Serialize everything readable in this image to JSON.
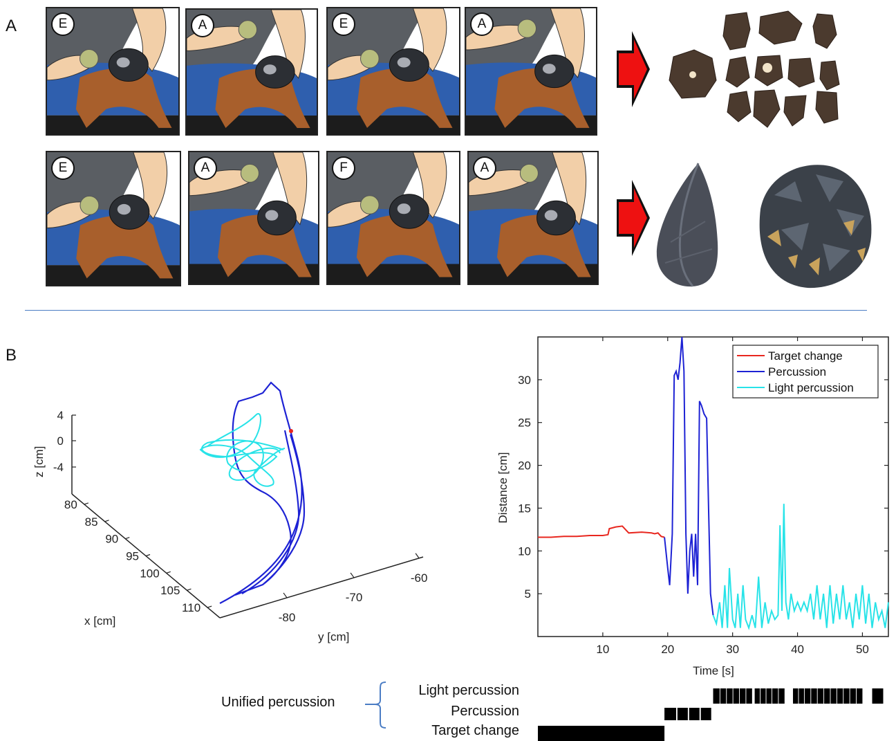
{
  "panels": {
    "a": "A",
    "b": "B"
  },
  "frames_top": [
    "E",
    "A",
    "E",
    "A"
  ],
  "frames_bottom": [
    "E",
    "A",
    "F",
    "A"
  ],
  "icons": {
    "arrow": "red-arrow-icon"
  },
  "colors": {
    "target_change": "#e8271f",
    "percussion": "#1d22d4",
    "light_percussion": "#28e3e8",
    "separator": "#4a7cc4",
    "shirt": "#5a5e63",
    "jeans": "#2f5fae",
    "leather": "#a85f2c",
    "skin": "#f2cfa8",
    "hammerstone": "#b8bd7e"
  },
  "trajectory": {
    "x_label": "x [cm]",
    "y_label": "y [cm]",
    "z_label": "z [cm]",
    "x_ticks": [
      "80",
      "85",
      "90",
      "95",
      "100",
      "105",
      "110"
    ],
    "y_ticks": [
      "-80",
      "-70",
      "-60"
    ],
    "z_ticks": [
      "4",
      "0",
      "-4"
    ]
  },
  "chart_data": {
    "type": "line",
    "xlabel": "Time [s]",
    "ylabel": "Distance [cm]",
    "xlim": [
      0,
      54
    ],
    "ylim": [
      0,
      35
    ],
    "x_ticks": [
      10,
      20,
      30,
      40,
      50
    ],
    "y_ticks": [
      5,
      10,
      15,
      20,
      25,
      30
    ],
    "legend_position": "top-right",
    "series": [
      {
        "name": "Target change",
        "color": "#e8271f",
        "points": [
          [
            0,
            11.6
          ],
          [
            2,
            11.6
          ],
          [
            4,
            11.7
          ],
          [
            6,
            11.7
          ],
          [
            8,
            11.8
          ],
          [
            10,
            11.8
          ],
          [
            10.8,
            11.9
          ],
          [
            11,
            12.6
          ],
          [
            12,
            12.8
          ],
          [
            13,
            12.9
          ],
          [
            13.5,
            12.5
          ],
          [
            14,
            12.1
          ],
          [
            16,
            12.2
          ],
          [
            17.5,
            12.1
          ],
          [
            18,
            12.0
          ],
          [
            18.5,
            12.1
          ],
          [
            19,
            11.7
          ],
          [
            19.5,
            11.6
          ]
        ]
      },
      {
        "name": "Percussion",
        "color": "#1d22d4",
        "points": [
          [
            19.5,
            11.6
          ],
          [
            20,
            8
          ],
          [
            20.3,
            6
          ],
          [
            20.7,
            12
          ],
          [
            21,
            30.5
          ],
          [
            21.3,
            31
          ],
          [
            21.6,
            30
          ],
          [
            21.9,
            32
          ],
          [
            22.2,
            35
          ],
          [
            22.5,
            31
          ],
          [
            22.8,
            12
          ],
          [
            23.1,
            5
          ],
          [
            23.4,
            10
          ],
          [
            23.7,
            12
          ],
          [
            24,
            7
          ],
          [
            24.3,
            12
          ],
          [
            24.6,
            6
          ],
          [
            24.9,
            27.5
          ],
          [
            25.2,
            27
          ],
          [
            25.6,
            26
          ],
          [
            26,
            25.5
          ],
          [
            26.3,
            15
          ],
          [
            26.6,
            5
          ],
          [
            27,
            2.5
          ]
        ]
      },
      {
        "name": "Light percussion",
        "color": "#28e3e8",
        "points": [
          [
            27,
            2.5
          ],
          [
            27.5,
            1.5
          ],
          [
            28,
            4
          ],
          [
            28.4,
            1
          ],
          [
            28.8,
            6
          ],
          [
            29.2,
            1
          ],
          [
            29.5,
            8
          ],
          [
            30,
            2
          ],
          [
            30.4,
            1
          ],
          [
            30.8,
            5
          ],
          [
            31.2,
            1
          ],
          [
            31.6,
            6
          ],
          [
            32,
            2
          ],
          [
            32.5,
            1
          ],
          [
            33,
            2.5
          ],
          [
            33.5,
            1
          ],
          [
            34,
            7
          ],
          [
            34.5,
            1
          ],
          [
            35,
            4
          ],
          [
            35.5,
            1.5
          ],
          [
            36,
            3
          ],
          [
            36.5,
            2
          ],
          [
            37,
            2.5
          ],
          [
            37.3,
            13
          ],
          [
            37.6,
            3
          ],
          [
            37.9,
            15.5
          ],
          [
            38.2,
            4
          ],
          [
            38.6,
            2
          ],
          [
            39,
            5
          ],
          [
            39.5,
            3
          ],
          [
            40,
            4
          ],
          [
            40.5,
            3
          ],
          [
            41,
            4
          ],
          [
            41.5,
            3
          ],
          [
            42,
            5
          ],
          [
            42.5,
            2
          ],
          [
            43,
            6
          ],
          [
            43.5,
            2
          ],
          [
            44,
            5
          ],
          [
            44.5,
            1
          ],
          [
            45,
            6
          ],
          [
            45.5,
            1.5
          ],
          [
            46,
            5
          ],
          [
            46.5,
            2
          ],
          [
            47,
            6
          ],
          [
            47.5,
            2
          ],
          [
            48,
            4
          ],
          [
            48.5,
            1
          ],
          [
            49,
            5
          ],
          [
            49.5,
            2
          ],
          [
            50,
            6
          ],
          [
            50.5,
            1.5
          ],
          [
            51,
            5
          ],
          [
            51.5,
            1
          ],
          [
            52,
            4
          ],
          [
            52.5,
            2
          ],
          [
            53,
            3
          ],
          [
            53.5,
            1
          ],
          [
            54,
            4
          ]
        ]
      }
    ]
  },
  "bars": {
    "group_label": "Unified percussion",
    "rows": [
      {
        "label": "Light percussion",
        "segments": [
          [
            27,
            28
          ],
          [
            28.1,
            29
          ],
          [
            29.1,
            30
          ],
          [
            30.1,
            31
          ],
          [
            31.1,
            32
          ],
          [
            32.1,
            33
          ],
          [
            33.4,
            34.2
          ],
          [
            34.3,
            35.1
          ],
          [
            35.2,
            36
          ],
          [
            36.1,
            37
          ],
          [
            37.1,
            38
          ],
          [
            39.3,
            40.1
          ],
          [
            40.2,
            41
          ],
          [
            41.1,
            42
          ],
          [
            42.1,
            43
          ],
          [
            43.1,
            44
          ],
          [
            44.1,
            45
          ],
          [
            45.1,
            46
          ],
          [
            46.1,
            47
          ],
          [
            47.1,
            48
          ],
          [
            48.1,
            49
          ],
          [
            49.1,
            50
          ],
          [
            51.5,
            53.2
          ]
        ]
      },
      {
        "label": "Percussion",
        "segments": [
          [
            19.5,
            21.3
          ],
          [
            21.5,
            23.1
          ],
          [
            23.3,
            24.9
          ],
          [
            25.1,
            26.7
          ]
        ]
      },
      {
        "label": "Target change",
        "segments": [
          [
            0,
            19.5
          ]
        ]
      }
    ]
  }
}
